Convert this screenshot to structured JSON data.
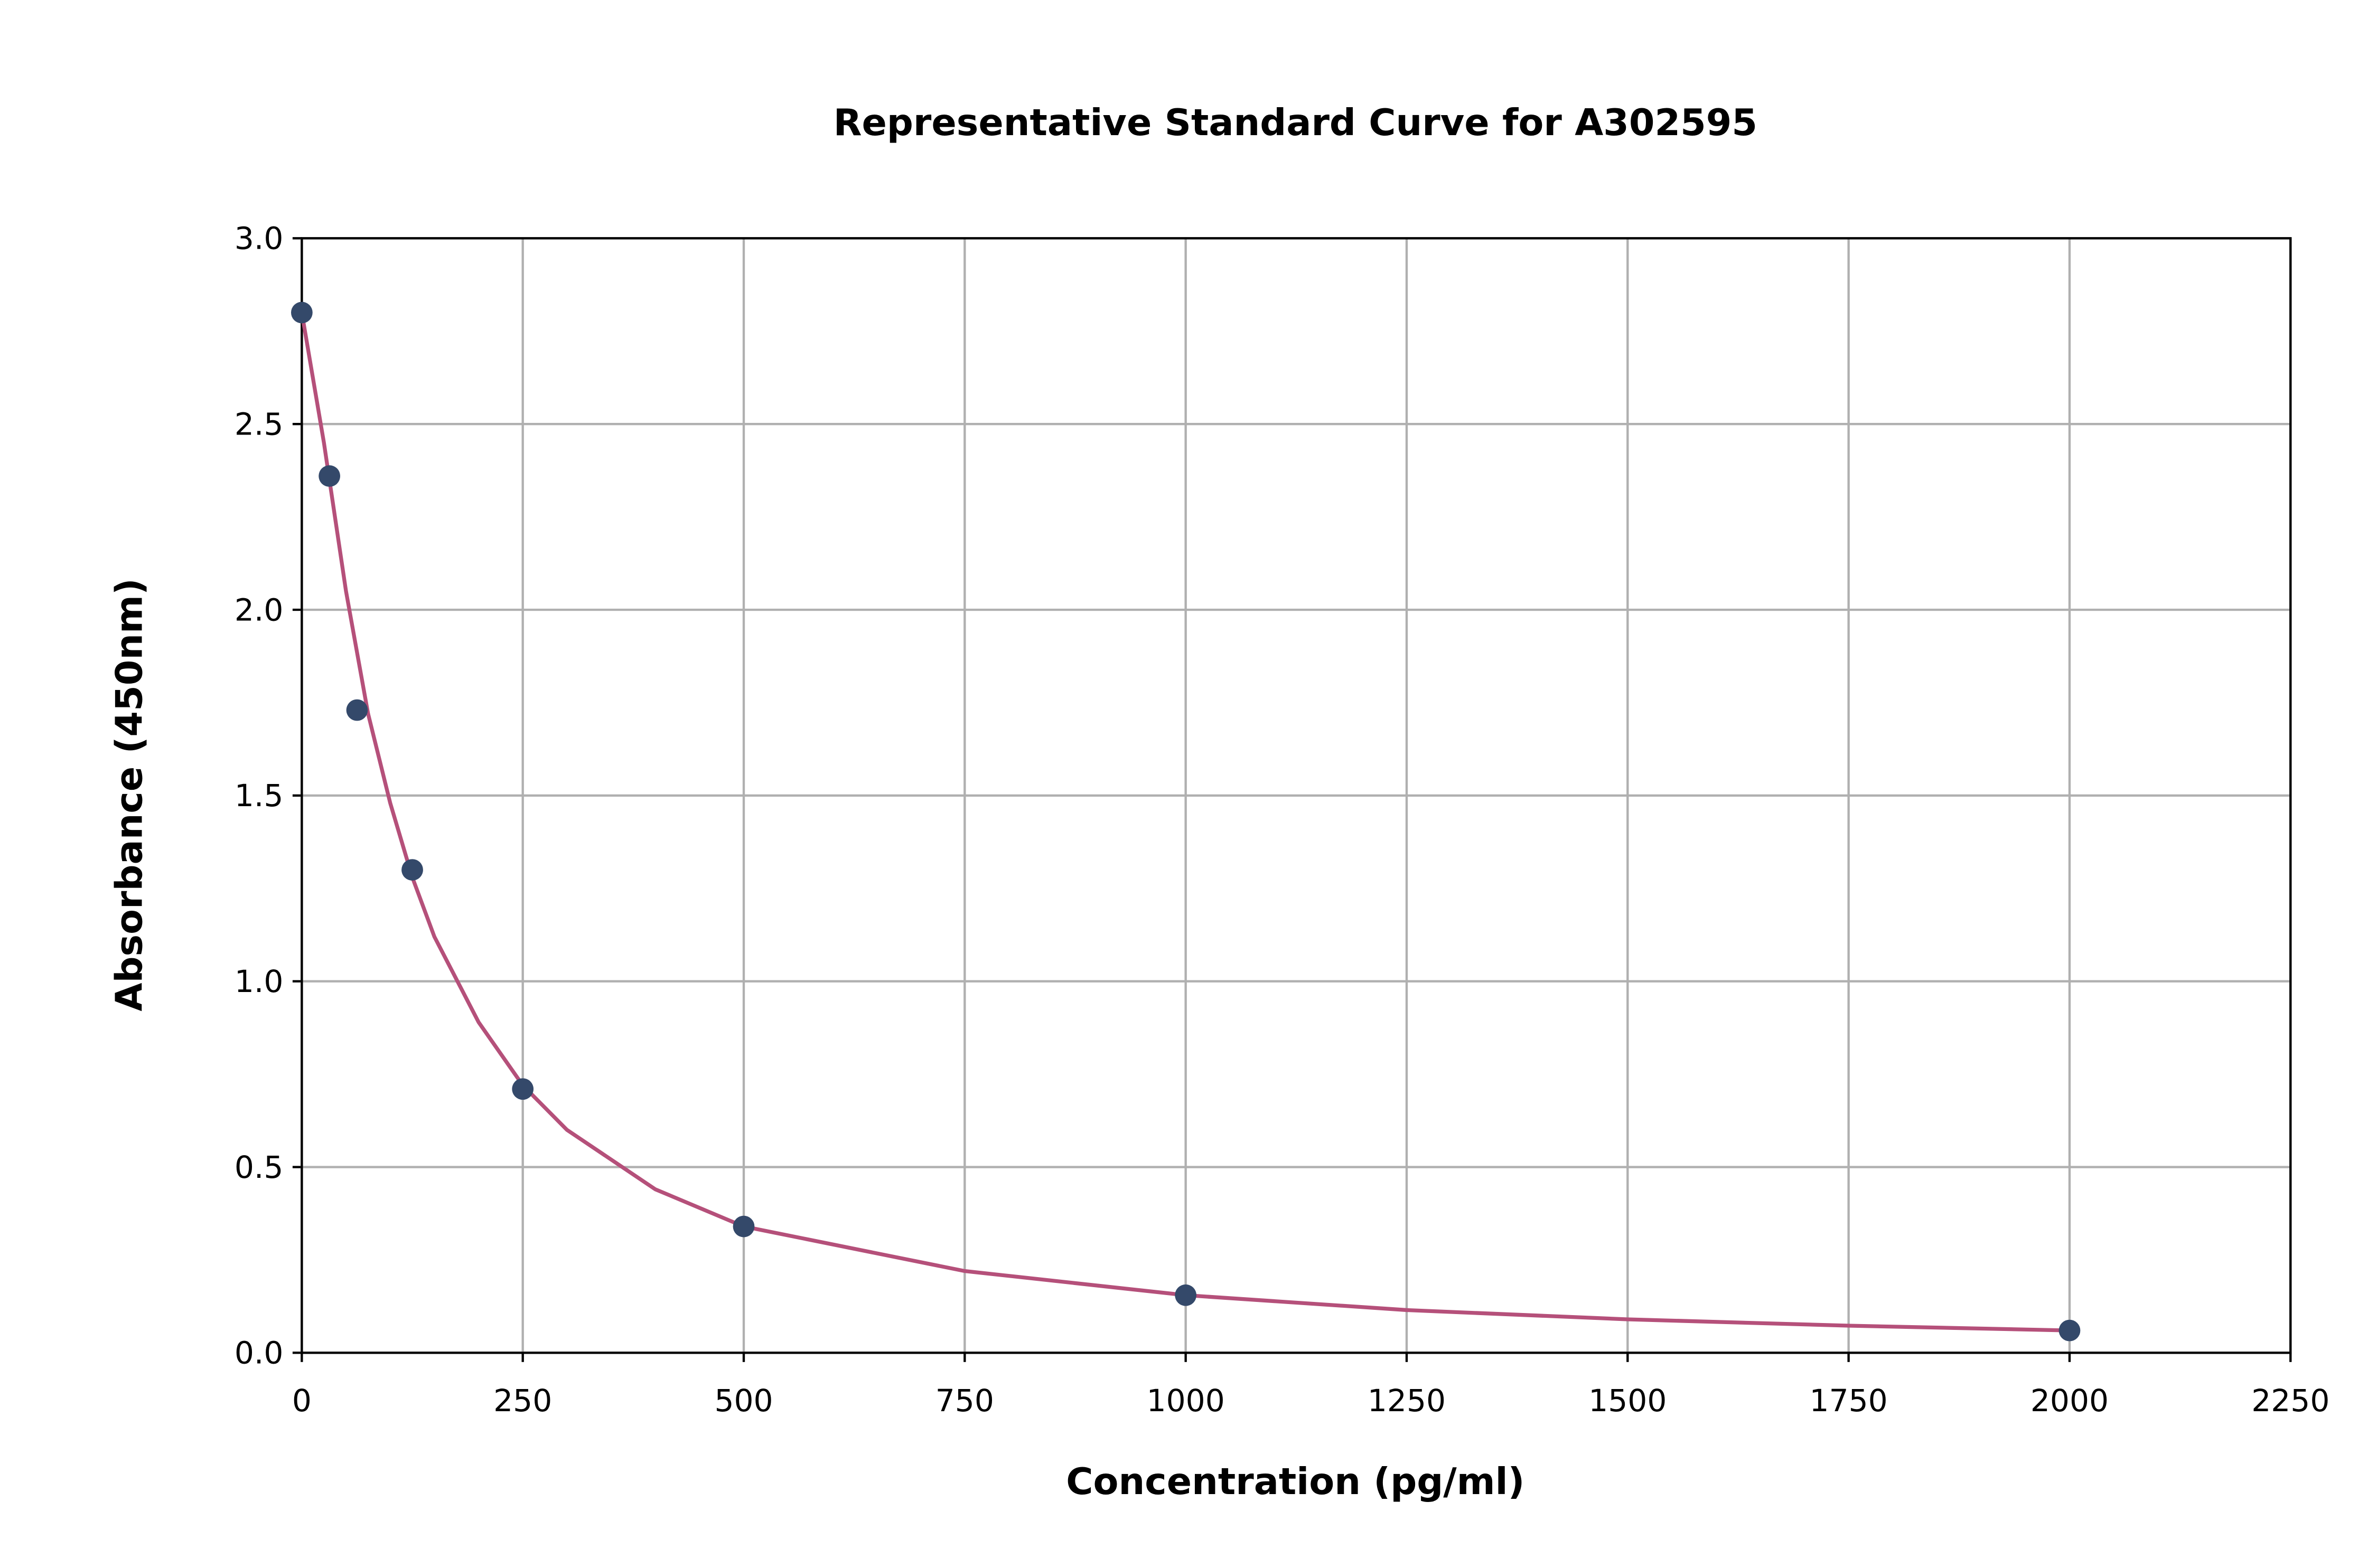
{
  "chart_data": {
    "type": "scatter",
    "title": "Representative Standard Curve for A302595",
    "x_label": "Concentration (pg/ml)",
    "y_label": "Absorbance (450nm)",
    "xlim": [
      0,
      2250
    ],
    "ylim": [
      0,
      3
    ],
    "xticks": [
      0,
      250,
      500,
      750,
      1000,
      1250,
      1500,
      1750,
      2000,
      2250
    ],
    "yticks": [
      {
        "value": 0,
        "label": "0.0"
      },
      0.5,
      {
        "value": 1,
        "label": "1.0"
      },
      1.5,
      {
        "value": 2,
        "label": "2.0"
      },
      2.5,
      {
        "value": 3,
        "label": "3.0"
      }
    ],
    "grid": true,
    "series": [
      {
        "type": "scatter",
        "color": "#34496a",
        "x": [
          0,
          31.25,
          62.5,
          125,
          250,
          500,
          1000,
          2000
        ],
        "values": [
          2.8,
          2.36,
          1.73,
          1.3,
          0.71,
          0.34,
          0.155,
          0.06
        ]
      },
      {
        "type": "line",
        "color": "#b5507a",
        "x": [
          0,
          25,
          50,
          75,
          100,
          125,
          150,
          200,
          250,
          300,
          400,
          500,
          750,
          1000,
          1250,
          1500,
          1750,
          2000
        ],
        "values": [
          2.8,
          2.45,
          2.05,
          1.72,
          1.48,
          1.28,
          1.12,
          0.89,
          0.72,
          0.6,
          0.44,
          0.34,
          0.22,
          0.155,
          0.115,
          0.09,
          0.073,
          0.06
        ]
      }
    ]
  }
}
